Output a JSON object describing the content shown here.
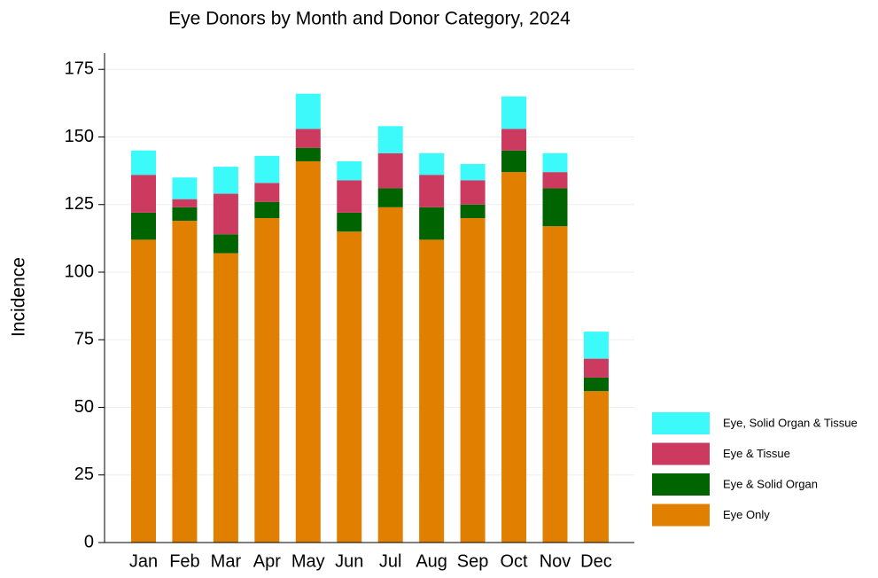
{
  "chart_data": {
    "type": "stacked_bar",
    "title": "Eye Donors by Month and Donor Category, 2024",
    "y_label": "Incidence",
    "categories": [
      "Jan",
      "Feb",
      "Mar",
      "Apr",
      "May",
      "Jun",
      "Jul",
      "Aug",
      "Sep",
      "Oct",
      "Nov",
      "Dec"
    ],
    "series": [
      {
        "name": "Eye Only",
        "color": "#e07f00",
        "values": [
          112,
          119,
          107,
          120,
          141,
          115,
          124,
          112,
          120,
          137,
          117,
          56
        ]
      },
      {
        "name": "Eye & Solid Organ",
        "color": "#006400",
        "values": [
          10,
          5,
          7,
          6,
          5,
          7,
          7,
          12,
          5,
          8,
          14,
          5
        ]
      },
      {
        "name": "Eye & Tissue",
        "color": "#cc3a5f",
        "values": [
          14,
          3,
          15,
          7,
          7,
          12,
          13,
          12,
          9,
          8,
          6,
          7
        ]
      },
      {
        "name": "Eye, Solid Organ & Tissue",
        "color": "#3cf9fa",
        "values": [
          9,
          8,
          10,
          10,
          13,
          7,
          10,
          8,
          6,
          12,
          7,
          10
        ]
      }
    ],
    "ylim": [
      0,
      180
    ],
    "yticks": [
      0,
      25,
      50,
      75,
      100,
      125,
      150,
      175
    ],
    "grid": true,
    "legend": "lower right"
  }
}
